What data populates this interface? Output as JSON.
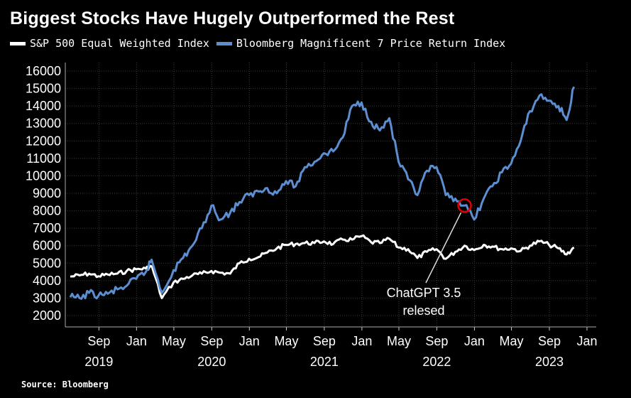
{
  "chart_data": {
    "type": "line",
    "title": "Biggest Stocks Have Hugely Outperformed the Rest",
    "source": "Source: Bloomberg",
    "legend_position": "top-left",
    "grid": true,
    "ylim": [
      2000,
      16000
    ],
    "yticks": [
      "2000",
      "3000",
      "4000",
      "5000",
      "6000",
      "7000",
      "8000",
      "9000",
      "10000",
      "11000",
      "12000",
      "13000",
      "14000",
      "15000",
      "16000"
    ],
    "xlim": [
      "2019-05-15",
      "2024-01-31"
    ],
    "xticks": [
      {
        "date": "2019-09-01",
        "label": "Sep"
      },
      {
        "date": "2020-01-01",
        "label": "Jan"
      },
      {
        "date": "2020-05-01",
        "label": "May"
      },
      {
        "date": "2020-09-01",
        "label": "Sep"
      },
      {
        "date": "2021-01-01",
        "label": "Jan"
      },
      {
        "date": "2021-05-01",
        "label": "May"
      },
      {
        "date": "2021-09-01",
        "label": "Sep"
      },
      {
        "date": "2022-01-01",
        "label": "Jan"
      },
      {
        "date": "2022-05-01",
        "label": "May"
      },
      {
        "date": "2022-09-01",
        "label": "Sep"
      },
      {
        "date": "2023-01-01",
        "label": "Jan"
      },
      {
        "date": "2023-05-01",
        "label": "May"
      },
      {
        "date": "2023-09-01",
        "label": "Sep"
      },
      {
        "date": "2024-01-01",
        "label": "Jan"
      }
    ],
    "year_labels": [
      {
        "date": "2019-09-01",
        "label": "2019"
      },
      {
        "date": "2020-09-01",
        "label": "2020"
      },
      {
        "date": "2021-09-01",
        "label": "2021"
      },
      {
        "date": "2022-09-01",
        "label": "2022"
      },
      {
        "date": "2023-09-01",
        "label": "2023"
      }
    ],
    "series": [
      {
        "name": "S&P 500 Equal Weighted Index",
        "color": "#ffffff",
        "points": [
          [
            "2019-05-31",
            4230
          ],
          [
            "2019-06-30",
            4300
          ],
          [
            "2019-07-31",
            4400
          ],
          [
            "2019-08-31",
            4250
          ],
          [
            "2019-09-30",
            4350
          ],
          [
            "2019-10-31",
            4400
          ],
          [
            "2019-11-30",
            4550
          ],
          [
            "2019-12-31",
            4650
          ],
          [
            "2020-01-31",
            4700
          ],
          [
            "2020-02-20",
            4800
          ],
          [
            "2020-03-23",
            3000
          ],
          [
            "2020-04-30",
            3900
          ],
          [
            "2020-05-31",
            4100
          ],
          [
            "2020-06-30",
            4300
          ],
          [
            "2020-07-31",
            4400
          ],
          [
            "2020-08-31",
            4550
          ],
          [
            "2020-09-30",
            4450
          ],
          [
            "2020-10-31",
            4400
          ],
          [
            "2020-11-30",
            5000
          ],
          [
            "2020-12-31",
            5250
          ],
          [
            "2021-01-31",
            5350
          ],
          [
            "2021-02-28",
            5600
          ],
          [
            "2021-03-31",
            5850
          ],
          [
            "2021-04-30",
            6050
          ],
          [
            "2021-05-31",
            6100
          ],
          [
            "2021-06-30",
            6150
          ],
          [
            "2021-07-31",
            6150
          ],
          [
            "2021-08-31",
            6250
          ],
          [
            "2021-09-30",
            6100
          ],
          [
            "2021-10-31",
            6350
          ],
          [
            "2021-11-30",
            6350
          ],
          [
            "2021-12-31",
            6550
          ],
          [
            "2022-01-31",
            6200
          ],
          [
            "2022-02-28",
            6150
          ],
          [
            "2022-03-31",
            6400
          ],
          [
            "2022-04-30",
            5900
          ],
          [
            "2022-05-31",
            5800
          ],
          [
            "2022-06-30",
            5300
          ],
          [
            "2022-07-31",
            5650
          ],
          [
            "2022-08-31",
            5800
          ],
          [
            "2022-09-30",
            5250
          ],
          [
            "2022-10-31",
            5650
          ],
          [
            "2022-11-30",
            6000
          ],
          [
            "2022-12-31",
            5750
          ],
          [
            "2023-01-31",
            6050
          ],
          [
            "2023-02-28",
            5950
          ],
          [
            "2023-03-31",
            5800
          ],
          [
            "2023-04-30",
            5850
          ],
          [
            "2023-05-31",
            5700
          ],
          [
            "2023-06-30",
            6000
          ],
          [
            "2023-07-31",
            6250
          ],
          [
            "2023-08-31",
            6050
          ],
          [
            "2023-09-30",
            5850
          ],
          [
            "2023-10-27",
            5500
          ],
          [
            "2023-11-20",
            5900
          ]
        ]
      },
      {
        "name": "Bloomberg Magnificent 7 Price Return Index",
        "color": "#5b8fd2",
        "points": [
          [
            "2019-05-31",
            3050
          ],
          [
            "2019-06-30",
            3000
          ],
          [
            "2019-07-31",
            3300
          ],
          [
            "2019-08-31",
            3150
          ],
          [
            "2019-09-30",
            3250
          ],
          [
            "2019-10-31",
            3500
          ],
          [
            "2019-11-30",
            3700
          ],
          [
            "2019-12-31",
            4100
          ],
          [
            "2020-01-31",
            4500
          ],
          [
            "2020-02-19",
            5200
          ],
          [
            "2020-03-23",
            3300
          ],
          [
            "2020-04-30",
            4600
          ],
          [
            "2020-05-31",
            5300
          ],
          [
            "2020-06-30",
            6000
          ],
          [
            "2020-07-31",
            7000
          ],
          [
            "2020-08-31",
            8300
          ],
          [
            "2020-09-30",
            7500
          ],
          [
            "2020-10-31",
            7900
          ],
          [
            "2020-11-30",
            8500
          ],
          [
            "2020-12-31",
            8900
          ],
          [
            "2021-01-31",
            9100
          ],
          [
            "2021-02-28",
            9300
          ],
          [
            "2021-03-31",
            9000
          ],
          [
            "2021-04-30",
            9700
          ],
          [
            "2021-05-31",
            9400
          ],
          [
            "2021-06-30",
            10500
          ],
          [
            "2021-07-31",
            10800
          ],
          [
            "2021-08-31",
            11300
          ],
          [
            "2021-09-30",
            11400
          ],
          [
            "2021-10-31",
            12200
          ],
          [
            "2021-11-30",
            14000
          ],
          [
            "2021-12-31",
            14200
          ],
          [
            "2022-01-31",
            13100
          ],
          [
            "2022-02-28",
            12600
          ],
          [
            "2022-03-31",
            13300
          ],
          [
            "2022-04-30",
            10800
          ],
          [
            "2022-05-31",
            9800
          ],
          [
            "2022-06-30",
            8900
          ],
          [
            "2022-07-31",
            10300
          ],
          [
            "2022-08-31",
            10500
          ],
          [
            "2022-09-30",
            8900
          ],
          [
            "2022-10-31",
            8700
          ],
          [
            "2022-11-30",
            8300
          ],
          [
            "2022-12-31",
            7500
          ],
          [
            "2023-01-31",
            8700
          ],
          [
            "2023-02-28",
            9400
          ],
          [
            "2023-03-31",
            10200
          ],
          [
            "2023-04-30",
            10700
          ],
          [
            "2023-05-31",
            12000
          ],
          [
            "2023-06-30",
            13700
          ],
          [
            "2023-07-31",
            14600
          ],
          [
            "2023-08-31",
            14300
          ],
          [
            "2023-09-30",
            14000
          ],
          [
            "2023-10-27",
            13200
          ],
          [
            "2023-11-20",
            15100
          ]
        ]
      }
    ],
    "annotation": {
      "lines": [
        "ChatGPT 3.5",
        "relesed"
      ],
      "date": "2022-11-30",
      "value": 8300,
      "marker_color": "#e00000"
    }
  }
}
